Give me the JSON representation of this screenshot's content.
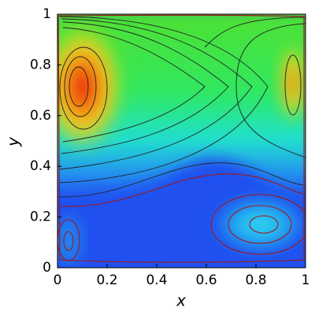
{
  "chart_data": {
    "type": "contour",
    "xlabel": "x",
    "ylabel": "y",
    "xlim": [
      0,
      1
    ],
    "ylim": [
      0,
      1
    ],
    "xticks": [
      0,
      0.2,
      0.4,
      0.6,
      0.8,
      1
    ],
    "yticks": [
      0,
      0.2,
      0.4,
      0.6,
      0.8,
      1
    ]
  }
}
